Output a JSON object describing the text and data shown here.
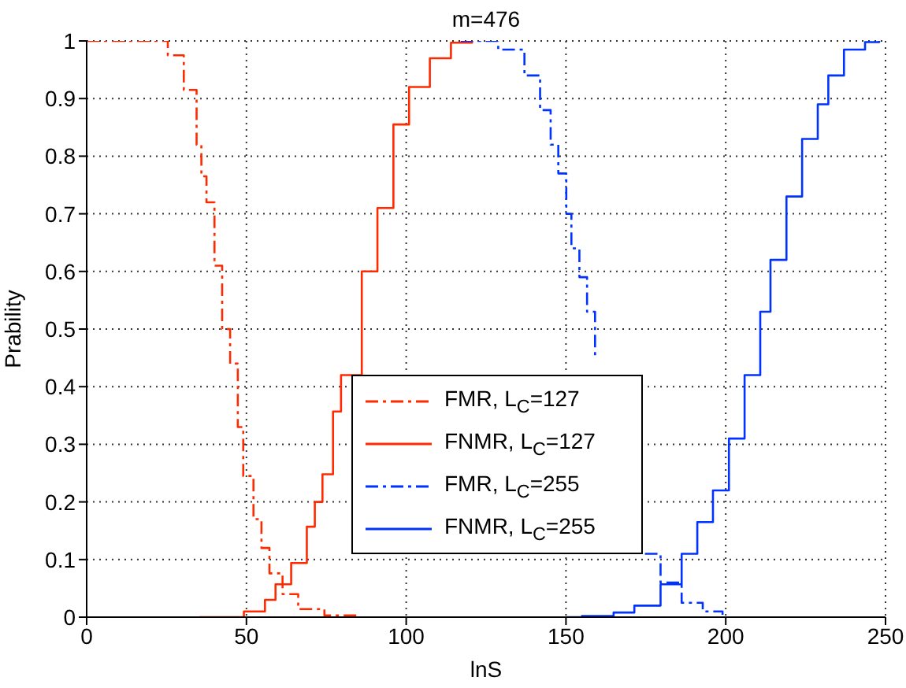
{
  "chart_data": {
    "type": "step",
    "title": "m=476",
    "xlabel": "lnS",
    "ylabel": "Prability",
    "xlim": [
      0,
      250
    ],
    "xticks": [
      0,
      50,
      100,
      150,
      200,
      250
    ],
    "ylim": [
      0,
      1
    ],
    "yticks": [
      0,
      0.1,
      0.2,
      0.3,
      0.4,
      0.5,
      0.6,
      0.7,
      0.8,
      0.9,
      1
    ],
    "grid": true,
    "legend": "bottom",
    "series": [
      {
        "name": "FMR, L$_{C}$=127",
        "color": "#ff2a00",
        "line_style": "dashed",
        "x": [
          0,
          18.9,
          25.4,
          30.4,
          34.4,
          35.9,
          37.5,
          40,
          42.4,
          44.9,
          47.3,
          49,
          52.2,
          54.7,
          57.2,
          61.3,
          66.2,
          74.4,
          85
        ],
        "values": [
          1,
          1,
          0.975,
          0.915,
          0.82,
          0.765,
          0.72,
          0.61,
          0.5,
          0.44,
          0.33,
          0.245,
          0.17,
          0.12,
          0.076,
          0.04,
          0.014,
          0.003,
          0
        ]
      },
      {
        "name": "FNMR, L$_{C}$=127",
        "color": "#ff2a00",
        "line_style": "solid",
        "x": [
          35.3,
          49.2,
          55.8,
          59.1,
          64,
          68.9,
          71.4,
          73.8,
          77.1,
          79.6,
          86.1,
          91,
          96,
          100.9,
          107.4,
          114,
          120.6
        ],
        "values": [
          0,
          0.01,
          0.03,
          0.057,
          0.094,
          0.157,
          0.2,
          0.248,
          0.357,
          0.42,
          0.6,
          0.71,
          0.855,
          0.92,
          0.97,
          0.997,
          1
        ]
      },
      {
        "name": "FMR, L$_{C}$=255",
        "color": "#0033ff",
        "line_style": "dashed",
        "x": [
          117,
          122,
          128.8,
          137,
          141.9,
          145.2,
          147.6,
          150.1,
          151.7,
          154.2,
          156.6,
          159.1,
          160,
          167,
          174.7,
          179.6,
          186.2,
          192.8,
          199
        ],
        "values": [
          1,
          1,
          0.985,
          0.94,
          0.88,
          0.82,
          0.77,
          0.7,
          0.64,
          0.59,
          0.53,
          0.45,
          null,
          null,
          0.11,
          0.06,
          0.025,
          0.01,
          0
        ]
      },
      {
        "name": "FNMR, L$_{C}$=255",
        "color": "#0033ff",
        "line_style": "solid",
        "x": [
          150,
          155,
          164.9,
          171.4,
          179.6,
          186.2,
          191.1,
          196,
          201,
          205.9,
          210.8,
          214,
          219,
          223.9,
          228.8,
          232.1,
          237,
          243.6,
          248
        ],
        "values": [
          0,
          0.002,
          0.008,
          0.02,
          0.057,
          0.11,
          0.165,
          0.22,
          0.31,
          0.42,
          0.53,
          0.62,
          0.73,
          0.83,
          0.89,
          0.94,
          0.985,
          0.998,
          1
        ]
      }
    ]
  }
}
